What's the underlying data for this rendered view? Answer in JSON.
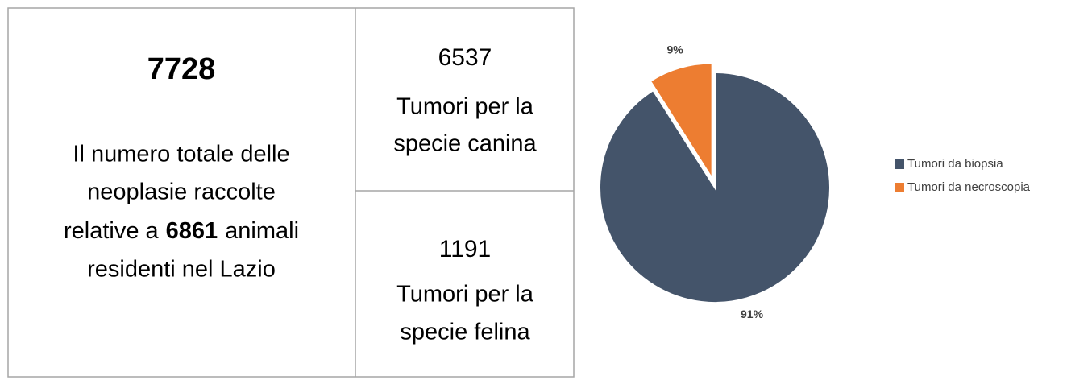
{
  "summary": {
    "total": "7728",
    "description": {
      "line1": "Il numero totale delle",
      "line2": "neoplasie raccolte",
      "line3_before": "relative a",
      "animals": "6861",
      "line3_after": "animali",
      "line4": "residenti nel Lazio"
    }
  },
  "canine": {
    "count": "6537",
    "lines": [
      "Tumori per la",
      "specie canina"
    ]
  },
  "feline": {
    "count": "1191",
    "lines": [
      "Tumori per la",
      "specie felina"
    ]
  },
  "chart_data": {
    "type": "pie",
    "categories": [
      "Tumori da biopsia",
      "Tumori da necroscopia"
    ],
    "values": [
      91,
      9
    ],
    "value_labels": [
      "91%",
      "9%"
    ],
    "colors": [
      "#44546a",
      "#ed7d31"
    ],
    "legend": "right"
  }
}
